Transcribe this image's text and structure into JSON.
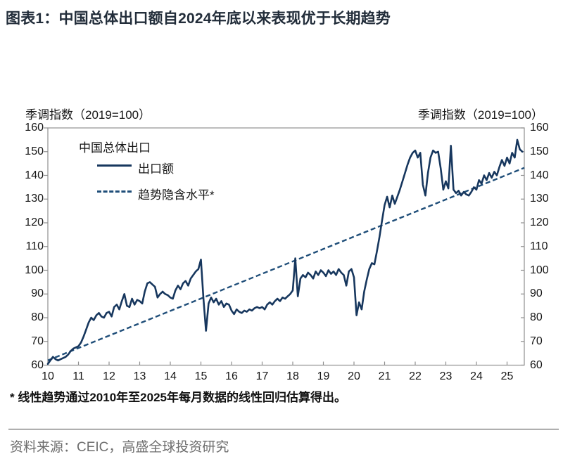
{
  "title": "图表1：中国总体出口额自2024年底以来表现优于长期趋势",
  "axis": {
    "left_header": "季调指数（2019=100）",
    "right_header": "季调指数（2019=100）",
    "y_ticks": [
      160,
      150,
      140,
      130,
      120,
      110,
      100,
      90,
      80,
      70,
      60
    ],
    "x_ticks": [
      "10",
      "11",
      "12",
      "13",
      "14",
      "15",
      "16",
      "17",
      "18",
      "19",
      "20",
      "21",
      "22",
      "23",
      "24",
      "25"
    ]
  },
  "legend": {
    "header": "中国总体出口",
    "series1_label": "出口额",
    "series2_label": "趋势隐含水平*"
  },
  "footnote": "* 线性趋势通过2010年至2025年每月数据的线性回归估算得出。",
  "source": "资料来源：CEIC，高盛全球投资研究",
  "colors": {
    "title": "#222d3a",
    "line": "#17375E",
    "trend": "#1F4E79",
    "frame": "#8f8f8f",
    "source_text": "#6e6e6e"
  },
  "chart_data": {
    "type": "line",
    "title": "中国总体出口",
    "ylabel": "季调指数（2019=100）",
    "ylim": [
      60,
      160
    ],
    "xlim": [
      2010.0,
      2025.58
    ],
    "grid": false,
    "legend_position": "upper-left",
    "x_start": 2010.0,
    "x_step_years": 0.0833333,
    "series": [
      {
        "name": "出口额",
        "style": "solid",
        "values": [
          60.5,
          62,
          63.5,
          62.5,
          62,
          62.5,
          63,
          63.5,
          64.5,
          66,
          67,
          67.5,
          68,
          69.5,
          72,
          75,
          78,
          80,
          79,
          81,
          82,
          80.5,
          80,
          82,
          82.5,
          80.5,
          84.5,
          85.5,
          83.5,
          87,
          90,
          85,
          84.5,
          88,
          85.5,
          87.5,
          87,
          86,
          91,
          94.5,
          95,
          94,
          93,
          88.5,
          90,
          91,
          90,
          89.5,
          88.5,
          88,
          91.5,
          93.5,
          92,
          94.5,
          95.5,
          93.5,
          96.5,
          98,
          99.5,
          100.5,
          104.5,
          88,
          74.5,
          86,
          88.5,
          86.5,
          88,
          85.5,
          87,
          84.5,
          86,
          85.5,
          83,
          81.5,
          83.5,
          82.5,
          82,
          83,
          82.5,
          83.5,
          83,
          84,
          84.5,
          84,
          84.5,
          83.5,
          85.5,
          86.5,
          85.5,
          87,
          88,
          87,
          88.5,
          88,
          89,
          90,
          91.5,
          105,
          89,
          96.5,
          98,
          97,
          99,
          98,
          96.5,
          99.5,
          98,
          100,
          99,
          97.5,
          100,
          98.5,
          99.5,
          98,
          100.5,
          99,
          98,
          93.5,
          99.5,
          100.5,
          97,
          81,
          86.5,
          83.5,
          91,
          96,
          100.5,
          103,
          102.5,
          108,
          114,
          121,
          127.5,
          131,
          126.5,
          131.5,
          128,
          131,
          134,
          137.5,
          141,
          144.5,
          147.5,
          149.5,
          150.5,
          147.5,
          149.5,
          136,
          131.5,
          141,
          147.5,
          150.5,
          149.5,
          150,
          143,
          134,
          137.5,
          134.5,
          152.5,
          134,
          132.5,
          133.5,
          131.5,
          133,
          132,
          131.5,
          133,
          135,
          134,
          138,
          136.5,
          140,
          138,
          141,
          139,
          141.5,
          140,
          143.5,
          146.5,
          144,
          147.5,
          145,
          149.5,
          147.5,
          155,
          151,
          150
        ]
      },
      {
        "name": "趋势隐含水平*",
        "style": "dashed",
        "trend_endpoints": {
          "x": [
            2010.0,
            2025.565
          ],
          "y": [
            62.0,
            143.2
          ]
        }
      }
    ]
  }
}
